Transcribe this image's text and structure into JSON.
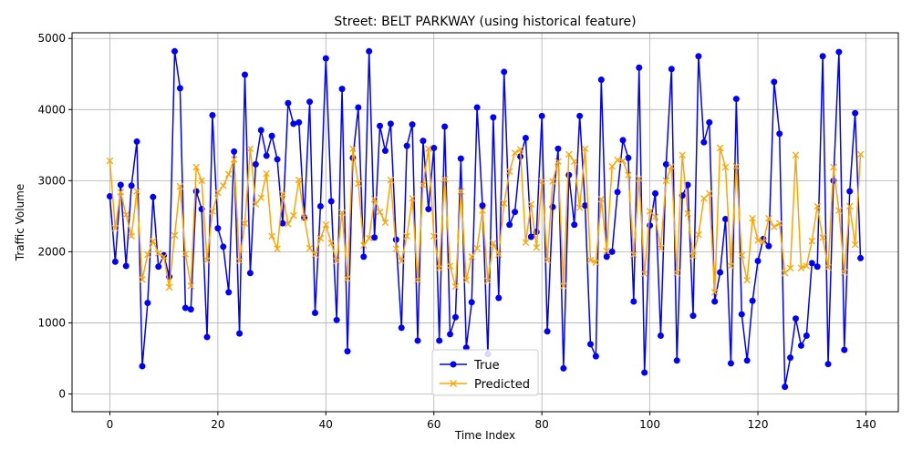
{
  "colors": {
    "true_series": "#0000ff",
    "predicted_series": "#ffa500",
    "grid": "#b0b0b0",
    "axes": "#000000",
    "background": "#ffffff"
  },
  "chart_data": {
    "type": "line",
    "title": "Street: BELT PARKWAY (using historical feature)",
    "xlabel": "Time Index",
    "ylabel": "Traffic Volume",
    "xlim": [
      -7,
      146
    ],
    "ylim": [
      -250,
      5080
    ],
    "xticks": [
      0,
      20,
      40,
      60,
      80,
      100,
      120,
      140
    ],
    "yticks": [
      0,
      1000,
      2000,
      3000,
      4000,
      5000
    ],
    "grid": true,
    "legend_position": "bottom-center",
    "series": [
      {
        "name": "True",
        "marker": "circle",
        "color": "#0000ff",
        "values": [
          2780,
          1860,
          2940,
          1800,
          2930,
          3550,
          390,
          1280,
          2770,
          1790,
          1950,
          1650,
          4820,
          4300,
          1210,
          1190,
          2850,
          2600,
          800,
          3920,
          2330,
          2070,
          1430,
          3410,
          850,
          4490,
          1700,
          3230,
          3710,
          3350,
          3630,
          3300,
          2400,
          4090,
          3800,
          3820,
          2480,
          4110,
          1140,
          2640,
          4720,
          2710,
          1040,
          4290,
          600,
          3320,
          4030,
          1930,
          4820,
          2200,
          3770,
          3420,
          3800,
          2170,
          930,
          3490,
          3790,
          750,
          3560,
          2600,
          3460,
          750,
          3760,
          840,
          1080,
          3310,
          650,
          1290,
          4030,
          2650,
          560,
          3890,
          1350,
          4530,
          2380,
          2560,
          3340,
          3600,
          2210,
          2280,
          3910,
          880,
          2630,
          3450,
          360,
          3080,
          2380,
          3910,
          2650,
          700,
          530,
          4420,
          1930,
          2000,
          2840,
          3570,
          3320,
          1300,
          4590,
          300,
          2370,
          2820,
          820,
          3230,
          4570,
          470,
          2790,
          2940,
          1100,
          4750,
          3540,
          3820,
          1300,
          1710,
          2460,
          430,
          4150,
          1120,
          470,
          1310,
          1870,
          2180,
          2080,
          4390,
          3660,
          100,
          510,
          1060,
          680,
          820,
          1840,
          1790,
          4750,
          420,
          3000,
          4810,
          620,
          2850,
          3950,
          1910
        ]
      },
      {
        "name": "Predicted",
        "marker": "x",
        "color": "#ffa500",
        "values": [
          3280,
          2330,
          2840,
          2520,
          2220,
          2850,
          1610,
          1960,
          2150,
          1980,
          1930,
          1500,
          2230,
          2920,
          1970,
          1520,
          3190,
          3000,
          1880,
          2570,
          2830,
          2930,
          3090,
          3300,
          1870,
          2400,
          3450,
          2670,
          2760,
          3100,
          2220,
          2040,
          2810,
          2390,
          2510,
          3010,
          2480,
          2050,
          1960,
          2190,
          2380,
          2120,
          1870,
          2550,
          1620,
          3450,
          2960,
          2090,
          2190,
          2740,
          2560,
          2410,
          3010,
          2040,
          1870,
          2220,
          2750,
          1600,
          2940,
          3450,
          2220,
          1770,
          3020,
          1800,
          1510,
          2850,
          1600,
          1930,
          2050,
          2580,
          1590,
          2120,
          1960,
          2680,
          3130,
          3390,
          3440,
          2130,
          2670,
          2060,
          2990,
          1880,
          2990,
          3270,
          1520,
          3370,
          3270,
          2620,
          3450,
          1880,
          1850,
          2740,
          2010,
          3200,
          3290,
          3280,
          3080,
          1960,
          3030,
          1690,
          2570,
          2490,
          2050,
          3000,
          3200,
          1700,
          3360,
          2540,
          1940,
          2240,
          2750,
          2820,
          1430,
          3460,
          3190,
          1800,
          3200,
          1950,
          1600,
          2470,
          2160,
          2140,
          2470,
          2350,
          2400,
          1700,
          1770,
          3360,
          1770,
          1800,
          2150,
          2640,
          2200,
          1780,
          3190,
          2580,
          1710,
          2640,
          2100,
          3370
        ]
      }
    ]
  }
}
